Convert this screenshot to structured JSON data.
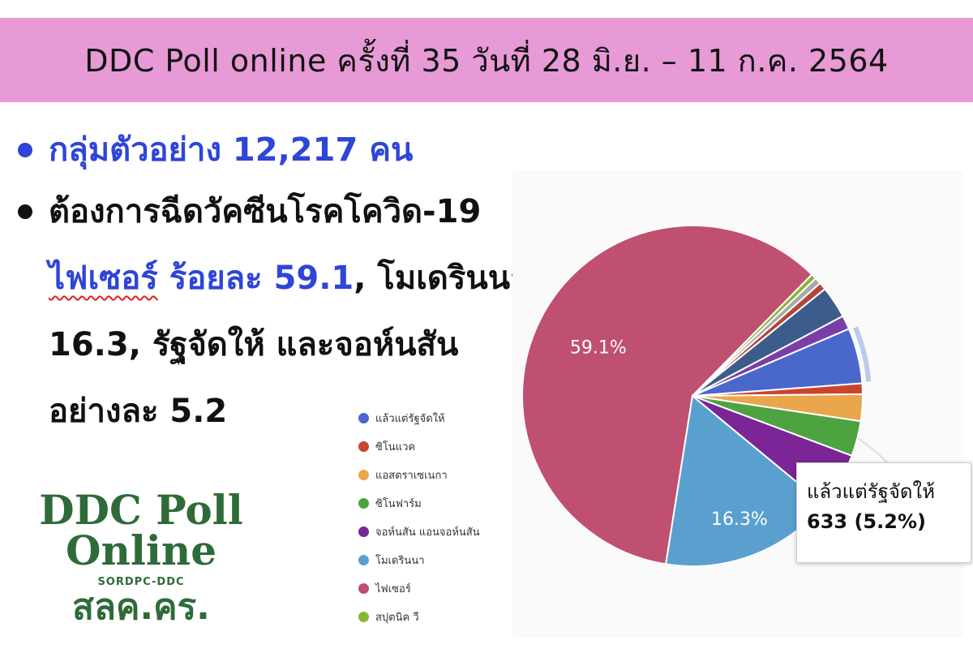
{
  "header": {
    "title": "DDC Poll online ครั้งที่ 35 วันที่ 28 มิ.ย. – 11 ก.ค. 2564",
    "background": "#e79ad6"
  },
  "bullets": {
    "sample": "กลุ่มตัวอย่าง 12,217 คน",
    "line1": "ต้องการฉีดวัคซีนโรคโควิด-19",
    "pfizer_word": "ไฟเซอร์",
    "pfizer_pct": "ร้อยละ 59.1",
    "line2_rest": ", โมเดรินนา",
    "line3": "16.3, รัฐจัดให้ และจอห์นสัน",
    "line4": "อย่างละ 5.2"
  },
  "logo": {
    "line1": "DDC Poll",
    "line2": "Online",
    "sub": "SORDPC-DDC",
    "thai": "สลค.คร."
  },
  "chart_data": {
    "type": "pie",
    "slices": [
      {
        "name": "ไฟเซอร์",
        "value": 59.1,
        "color": "#c0506f",
        "label": "59.1%"
      },
      {
        "name": "สปุตนิค วี",
        "value": 0.5,
        "color": "#8bb53a",
        "label": ""
      },
      {
        "name": "",
        "value": 0.6,
        "color": "#a8a8a8",
        "label": ""
      },
      {
        "name": "",
        "value": 0.7,
        "color": "#b0473c",
        "label": ""
      },
      {
        "name": "",
        "value": 3.0,
        "color": "#3c5c8c",
        "label": ""
      },
      {
        "name": "",
        "value": 1.3,
        "color": "#7a3fa6",
        "label": ""
      },
      {
        "name": "แล้วแต่รัฐจัดให้",
        "value": 5.2,
        "color": "#4a68cc",
        "label": "",
        "highlighted": true
      },
      {
        "name": "ซิโนแวค",
        "value": 1.0,
        "color": "#c9452f",
        "label": ""
      },
      {
        "name": "แอสตราเซเนกา",
        "value": 2.5,
        "color": "#e9a64c",
        "label": ""
      },
      {
        "name": "ซิโนฟาร์ม",
        "value": 3.3,
        "color": "#4ea341",
        "label": ""
      },
      {
        "name": "จอห์นสัน แอนจอห์นสัน",
        "value": 5.2,
        "color": "#7b2596",
        "label": ""
      },
      {
        "name": "โมเดรินนา",
        "value": 16.3,
        "color": "#5aa0cf",
        "label": "16.3%"
      }
    ],
    "legend": {
      "position": "bottom-left",
      "items": [
        {
          "label": "แล้วแต่รัฐจัดให้",
          "color": "#4a68cc"
        },
        {
          "label": "ซิโนแวค",
          "color": "#c9452f"
        },
        {
          "label": "แอสตราเซเนกา",
          "color": "#e9a64c"
        },
        {
          "label": "ซิโนฟาร์ม",
          "color": "#4ea341"
        },
        {
          "label": "จอห์นสัน แอนจอห์นสัน",
          "color": "#7b2596"
        },
        {
          "label": "โมเดรินนา",
          "color": "#5aa0cf"
        },
        {
          "label": "ไฟเซอร์",
          "color": "#c0506f"
        },
        {
          "label": "สปุตนิค วี",
          "color": "#8bb53a"
        }
      ]
    },
    "tooltip": {
      "label": "แล้วแต่รัฐจัดให้",
      "value": "633 (5.2%)"
    }
  }
}
